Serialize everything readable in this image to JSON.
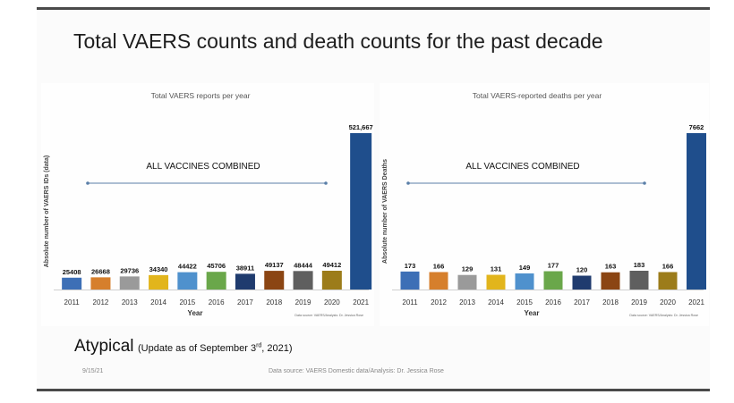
{
  "slide": {
    "title": "Total VAERS counts and death counts for the past decade",
    "subtitle_main": "Atypical",
    "subtitle_note_pre": "(Update as of September 3",
    "subtitle_note_sup": "rd",
    "subtitle_note_post": ", 2021)",
    "date": "9/15/21",
    "footer_source": "Data source: VAERS Domestic data/Analysis: Dr. Jessica Rose"
  },
  "chart_data": [
    {
      "type": "bar",
      "title": "Total VAERS reports per year",
      "xlabel": "Year",
      "ylabel": "Absolute number of VAERS IDs (data)",
      "categories": [
        "2011",
        "2012",
        "2013",
        "2014",
        "2015",
        "2016",
        "2017",
        "2018",
        "2019",
        "2020",
        "2021"
      ],
      "values": [
        25408,
        26668,
        29736,
        34340,
        44422,
        45706,
        38911,
        49137,
        48444,
        49412,
        521667
      ],
      "value_labels": [
        "25408",
        "26668",
        "29736",
        "34340",
        "44422",
        "45706",
        "38911",
        "49137",
        "48444",
        "49412",
        "521,667"
      ],
      "annotation": "ALL VACCINES COMBINED",
      "source": "Data source: VAERS/Analysis: Dr. Jessica Rose",
      "colors": [
        "#3d6fb6",
        "#d67f2c",
        "#9a9a9a",
        "#e2b51c",
        "#4f91cd",
        "#6aa74a",
        "#1f3b6e",
        "#8b4513",
        "#5f5f5f",
        "#9c7c1a",
        "#1f4e8c"
      ]
    },
    {
      "type": "bar",
      "title": "Total VAERS-reported deaths per year",
      "xlabel": "Year",
      "ylabel": "Absolute number of VAERS Deaths",
      "categories": [
        "2011",
        "2012",
        "2013",
        "2014",
        "2015",
        "2016",
        "2017",
        "2018",
        "2019",
        "2020",
        "2021"
      ],
      "values": [
        173,
        166,
        129,
        131,
        149,
        177,
        120,
        163,
        183,
        166,
        7662
      ],
      "value_labels": [
        "173",
        "166",
        "129",
        "131",
        "149",
        "177",
        "120",
        "163",
        "183",
        "166",
        "7662"
      ],
      "annotation": "ALL VACCINES COMBINED",
      "source": "Data source: VAERS/Analysis: Dr. Jessica Rose",
      "colors": [
        "#3d6fb6",
        "#d67f2c",
        "#9a9a9a",
        "#e2b51c",
        "#4f91cd",
        "#6aa74a",
        "#1f3b6e",
        "#8b4513",
        "#5f5f5f",
        "#9c7c1a",
        "#1f4e8c"
      ]
    }
  ]
}
